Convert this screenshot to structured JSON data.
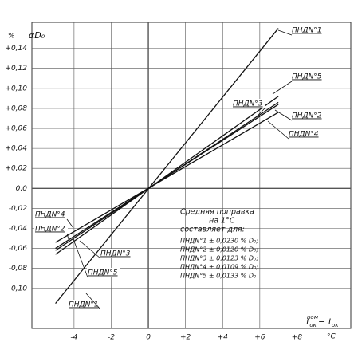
{
  "chart_data": {
    "type": "line",
    "y_unit": "%",
    "y_label": "αD₀",
    "x_label_parts": [
      "t",
      "ок",
      "ном",
      "− t",
      "ок"
    ],
    "x_unit": "°C",
    "x": [
      -5,
      7
    ],
    "xlim": [
      -6.27,
      10.9
    ],
    "ylim": [
      -0.14,
      0.166
    ],
    "xticks": [
      -4,
      -2,
      0,
      {
        "value": 2,
        "label": "+2"
      },
      {
        "value": 4,
        "label": "+4"
      },
      {
        "value": 6,
        "label": "+6"
      },
      {
        "value": 8,
        "label": "+8"
      }
    ],
    "yticks": [
      {
        "value": -0.1,
        "label": "-0,10"
      },
      {
        "value": -0.08,
        "label": "-0,08"
      },
      {
        "value": -0.06,
        "label": "-0,06"
      },
      {
        "value": -0.04,
        "label": "-0,04"
      },
      {
        "value": -0.02,
        "label": "-0,02"
      },
      {
        "value": 0,
        "label": "0,0"
      },
      {
        "value": 0.02,
        "label": "+0,02"
      },
      {
        "value": 0.04,
        "label": "+0,04"
      },
      {
        "value": 0.06,
        "label": "+0,06"
      },
      {
        "value": 0.08,
        "label": "+0,08"
      },
      {
        "value": 0.1,
        "label": "+0,10"
      },
      {
        "value": 0.12,
        "label": "+0,12"
      },
      {
        "value": 0.14,
        "label": "+0,14"
      }
    ],
    "grid": true,
    "series": [
      {
        "name": "ПНДN°1",
        "color": "#111111",
        "values": [
          -0.115,
          0.16
        ]
      },
      {
        "name": "ПНДN°5",
        "color": "#111111",
        "values": [
          -0.066,
          0.092
        ]
      },
      {
        "name": "ПНДN°3",
        "color": "#111111",
        "values": [
          -0.062,
          0.086
        ]
      },
      {
        "name": "ПНДN°2",
        "color": "#111111",
        "values": [
          -0.06,
          0.084
        ]
      },
      {
        "name": "ПНДN°4",
        "color": "#111111",
        "values": [
          -0.054,
          0.076
        ]
      }
    ],
    "note": {
      "title": [
        "Средняя поправка",
        "на 1°С",
        "составляет для:"
      ],
      "lines": [
        "ПНДN°1 ± 0,0230 % D₀;",
        "ПНДN°2 ± 0,0120 % D₀;",
        "ПНДN°3 ± 0,0123 % D₀;",
        "ПНДN°4 ± 0,0109 % D₀;",
        "ПНДN°5 ± 0,0133 % D₀"
      ]
    }
  }
}
